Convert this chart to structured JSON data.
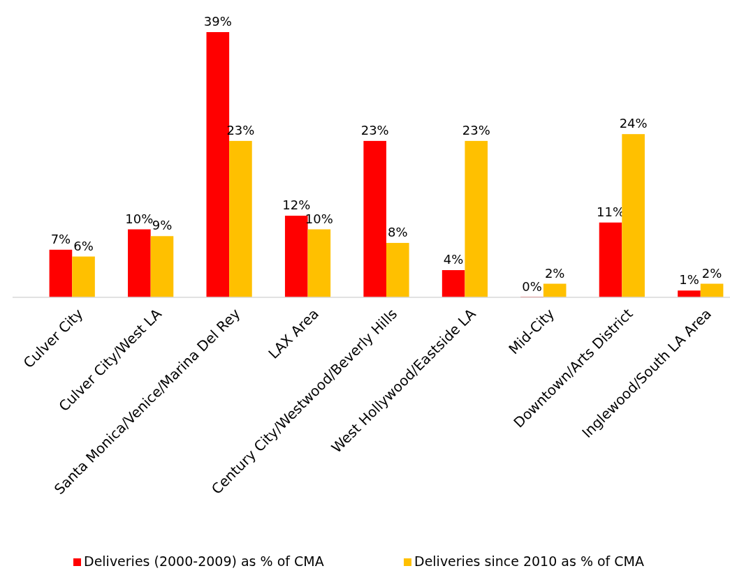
{
  "chart_data": {
    "type": "bar",
    "categories": [
      "Culver City",
      "Culver City/West LA",
      "Santa Monica/Venice/Marina Del Rey",
      "LAX Area",
      "Century City/Westwood/Beverly Hills",
      "West Hollywood/Eastside LA",
      "Mid-City",
      "Downtown/Arts District",
      "Inglewood/South LA Area"
    ],
    "series": [
      {
        "name": "Deliveries (2000-2009) as % of CMA",
        "color": "#ff0000",
        "values": [
          7,
          10,
          39,
          12,
          23,
          4,
          0,
          11,
          1
        ],
        "value_labels": [
          "7%",
          "10%",
          "39%",
          "12%",
          "23%",
          "4%",
          "0%",
          "11%",
          "1%"
        ]
      },
      {
        "name": "Deliveries since 2010 as % of CMA",
        "color": "#ffc000",
        "values": [
          6,
          9,
          23,
          10,
          8,
          23,
          2,
          24,
          2
        ],
        "value_labels": [
          "6%",
          "9%",
          "23%",
          "10%",
          "8%",
          "23%",
          "2%",
          "24%",
          "2%"
        ]
      }
    ],
    "legend": "bottom"
  }
}
